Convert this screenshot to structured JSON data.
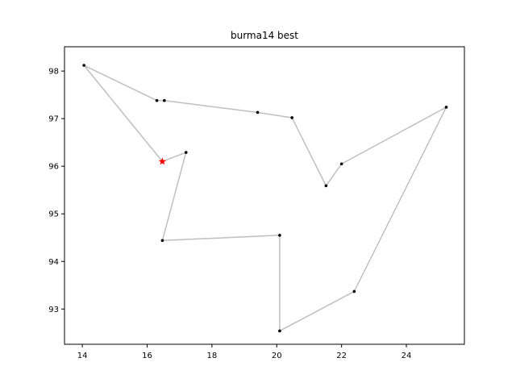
{
  "chart_data": {
    "type": "line",
    "title": "burma14 best",
    "xlabel": "",
    "ylabel": "",
    "xlim": [
      13.45,
      25.79
    ],
    "ylim": [
      92.26,
      98.51
    ],
    "xticks": [
      14,
      16,
      18,
      20,
      22,
      24
    ],
    "yticks": [
      93,
      94,
      95,
      96,
      97,
      98
    ],
    "grid": false,
    "route_color": "#bfbfbf",
    "point_color": "#000000",
    "start_color": "#ff0000",
    "route": [
      {
        "x": 16.47,
        "y": 96.1
      },
      {
        "x": 14.05,
        "y": 98.12
      },
      {
        "x": 16.3,
        "y": 97.38
      },
      {
        "x": 16.53,
        "y": 97.38
      },
      {
        "x": 19.41,
        "y": 97.13
      },
      {
        "x": 20.47,
        "y": 97.02
      },
      {
        "x": 21.52,
        "y": 95.59
      },
      {
        "x": 22.0,
        "y": 96.05
      },
      {
        "x": 25.23,
        "y": 97.24
      },
      {
        "x": 22.39,
        "y": 93.37
      },
      {
        "x": 20.09,
        "y": 92.54
      },
      {
        "x": 20.09,
        "y": 94.55
      },
      {
        "x": 16.47,
        "y": 94.44
      },
      {
        "x": 17.2,
        "y": 96.29
      },
      {
        "x": 16.47,
        "y": 96.1
      }
    ],
    "start": {
      "x": 16.47,
      "y": 96.1
    }
  }
}
